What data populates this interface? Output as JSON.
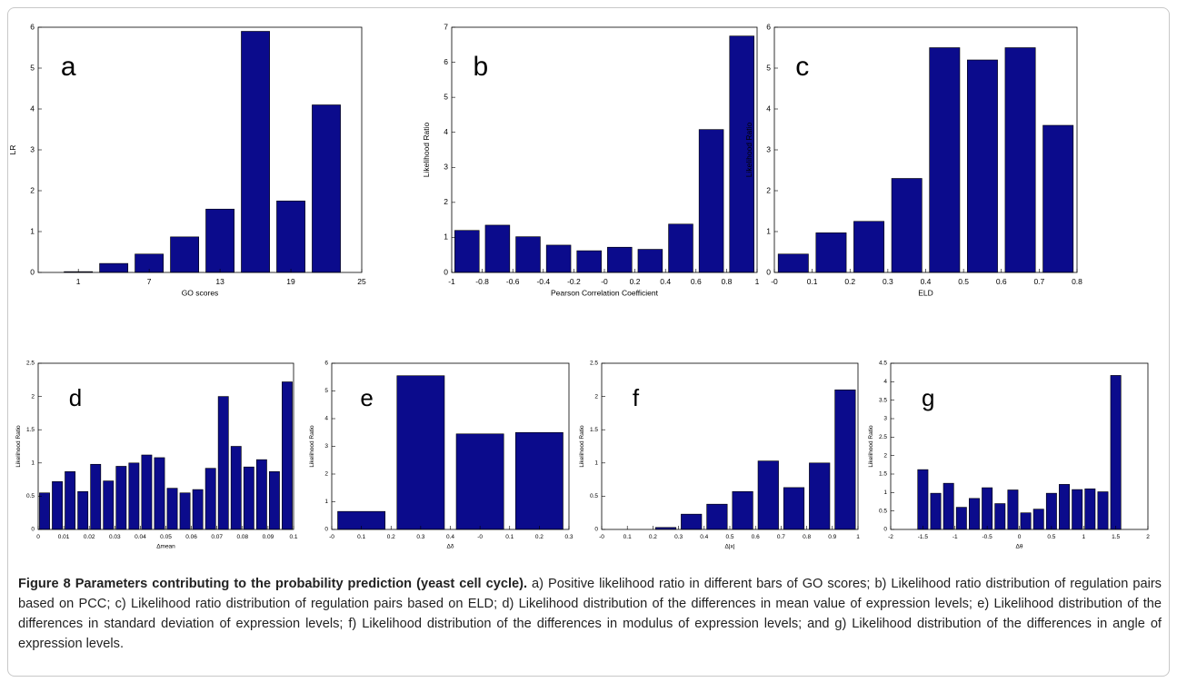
{
  "chart_data": [
    {
      "type": "histogram",
      "panel": "a",
      "ylabel": "LR",
      "xlabel": "GO scores",
      "color": "#0b0b8c",
      "bins": [
        -0.5,
        2.5,
        5.5,
        8.5,
        11.5,
        14.5,
        17.5,
        20.5,
        23.5
      ],
      "values": [
        0.02,
        0.22,
        0.45,
        0.87,
        1.55,
        5.9,
        1.75,
        4.1
      ],
      "xlim": [
        -2.4,
        25
      ],
      "xticks": [
        1,
        7,
        13,
        19,
        25
      ],
      "ylim": [
        0,
        6
      ],
      "yticks": [
        0,
        1,
        2,
        3,
        4,
        5,
        6
      ]
    },
    {
      "type": "histogram",
      "panel": "b",
      "ylabel": "Likelihood Ratio",
      "xlabel": "Pearson Correlation Coefficient",
      "color": "#0b0b8c",
      "bins": [
        -1,
        -0.8,
        -0.6,
        -0.4,
        -0.2,
        0,
        0.2,
        0.4,
        0.6,
        0.8,
        1
      ],
      "values": [
        1.2,
        1.35,
        1.02,
        0.78,
        0.62,
        0.72,
        0.66,
        1.38,
        4.08,
        6.75
      ],
      "xlim": [
        -1,
        1
      ],
      "xticks": [
        -1,
        -0.8,
        -0.6,
        -0.4,
        -0.2,
        {
          "value": 0,
          "label": "-0"
        },
        0.2,
        0.4,
        0.6,
        0.8,
        1
      ],
      "ylim": [
        0,
        7
      ],
      "yticks": [
        0,
        1,
        2,
        3,
        4,
        5,
        6,
        7
      ]
    },
    {
      "type": "histogram",
      "panel": "c",
      "ylabel": "Likelihood Ratio",
      "xlabel": "ELD",
      "color": "#0b0b8c",
      "bins": [
        0,
        0.1,
        0.2,
        0.3,
        0.4,
        0.5,
        0.6,
        0.7,
        0.8
      ],
      "values": [
        0.45,
        0.97,
        1.25,
        2.3,
        5.5,
        5.2,
        5.5,
        3.6
      ],
      "xlim": [
        0,
        0.8
      ],
      "xticks": [
        {
          "value": 0,
          "label": "-0"
        },
        0.1,
        0.2,
        0.3,
        0.4,
        0.5,
        0.6,
        0.7,
        0.8
      ],
      "ylim": [
        0,
        6
      ],
      "yticks": [
        0,
        1,
        2,
        3,
        4,
        5,
        6
      ]
    },
    {
      "type": "histogram",
      "panel": "d",
      "ylabel": "Likelihood Ratio",
      "xlabel": "Δmean",
      "color": "#0b0b8c",
      "bins": [
        0,
        0.005,
        0.01,
        0.015,
        0.02,
        0.025,
        0.03,
        0.035,
        0.04,
        0.045,
        0.05,
        0.055,
        0.06,
        0.065,
        0.07,
        0.075,
        0.08,
        0.085,
        0.09,
        0.095,
        0.1
      ],
      "values": [
        0.55,
        0.72,
        0.87,
        0.57,
        0.98,
        0.73,
        0.95,
        1.0,
        1.12,
        1.08,
        0.62,
        0.55,
        0.6,
        0.92,
        2.0,
        1.25,
        0.94,
        1.05,
        0.87,
        2.22
      ],
      "xlim": [
        0,
        0.1
      ],
      "xticks": [
        0,
        0.01,
        0.02,
        0.03,
        0.04,
        0.05,
        0.06,
        0.07,
        0.08,
        0.09,
        0.1
      ],
      "ylim": [
        0,
        2.5
      ],
      "yticks": [
        0,
        0.5,
        1,
        1.5,
        2,
        2.5
      ]
    },
    {
      "type": "histogram",
      "panel": "e",
      "ylabel": "Likelihood Ratio",
      "xlabel": "Δδ",
      "color": "#0b0b8c",
      "bins": [
        0,
        2,
        4,
        6,
        8
      ],
      "values": [
        0.65,
        5.55,
        3.45,
        3.5
      ],
      "xlim": [
        0,
        8
      ],
      "xticks": [
        {
          "value": 0,
          "label": "-0"
        },
        {
          "value": 1,
          "label": "0.1"
        },
        {
          "value": 2,
          "label": "0.2"
        },
        {
          "value": 3,
          "label": "0.3"
        },
        {
          "value": 4,
          "label": "0.4"
        },
        {
          "value": 5,
          "label": "-0"
        },
        {
          "value": 6,
          "label": "0.1"
        },
        {
          "value": 7,
          "label": "0.2"
        },
        {
          "value": 8,
          "label": "0.3"
        }
      ],
      "ylim": [
        0,
        6
      ],
      "yticks": [
        0,
        1,
        2,
        3,
        4,
        5,
        6
      ]
    },
    {
      "type": "histogram",
      "panel": "f",
      "ylabel": "Likelihood Ratio",
      "xlabel": "Δ|x|",
      "color": "#0b0b8c",
      "bins": [
        0,
        0.1,
        0.2,
        0.3,
        0.4,
        0.5,
        0.6,
        0.7,
        0.8,
        0.9,
        1
      ],
      "values": [
        0,
        0,
        0.03,
        0.23,
        0.38,
        0.57,
        1.03,
        0.63,
        1.0,
        2.1
      ],
      "xlim": [
        0,
        1
      ],
      "xticks": [
        {
          "value": 0,
          "label": "-0"
        },
        0.1,
        0.2,
        0.3,
        0.4,
        0.5,
        0.6,
        0.7,
        0.8,
        0.9,
        1
      ],
      "ylim": [
        0,
        2.5
      ],
      "yticks": [
        0,
        0.5,
        1,
        1.5,
        2,
        2.5
      ]
    },
    {
      "type": "histogram",
      "panel": "g",
      "ylabel": "Likelihood Ratio",
      "xlabel": "Δθ",
      "color": "#0b0b8c",
      "bins": [
        -1.6,
        -1.4,
        -1.2,
        -1,
        -0.8,
        -0.6,
        -0.4,
        -0.2,
        0,
        0.2,
        0.4,
        0.6,
        0.8,
        1,
        1.2,
        1.4,
        1.6
      ],
      "values": [
        1.62,
        0.98,
        1.25,
        0.6,
        0.84,
        1.13,
        0.7,
        1.07,
        0.45,
        0.55,
        0.98,
        1.22,
        1.08,
        1.1,
        1.02,
        4.17
      ],
      "xlim": [
        -2,
        2
      ],
      "xticks": [
        -2,
        -1.5,
        -1,
        -0.5,
        0,
        0.5,
        1,
        1.5,
        2
      ],
      "ylim": [
        0,
        4.5
      ],
      "yticks": [
        0,
        0.5,
        1,
        1.5,
        2,
        2.5,
        3,
        3.5,
        4,
        4.5
      ]
    }
  ],
  "caption": {
    "label": "Figure 8 Parameters contributing to the probability prediction (yeast cell cycle).",
    "text": "a) Positive likelihood ratio in different bars of GO scores; b) Likelihood ratio distribution of regulation pairs based on PCC; c) Likelihood ratio distribution of regulation pairs based on ELD; d) Likelihood distribution of the differences in mean value of expression levels; e) Likelihood distribution of the differences in standard deviation of expression levels; f) Likelihood distribution of the differences in modulus of expression levels; and g) Likelihood distribution of the differences in angle of expression levels."
  }
}
